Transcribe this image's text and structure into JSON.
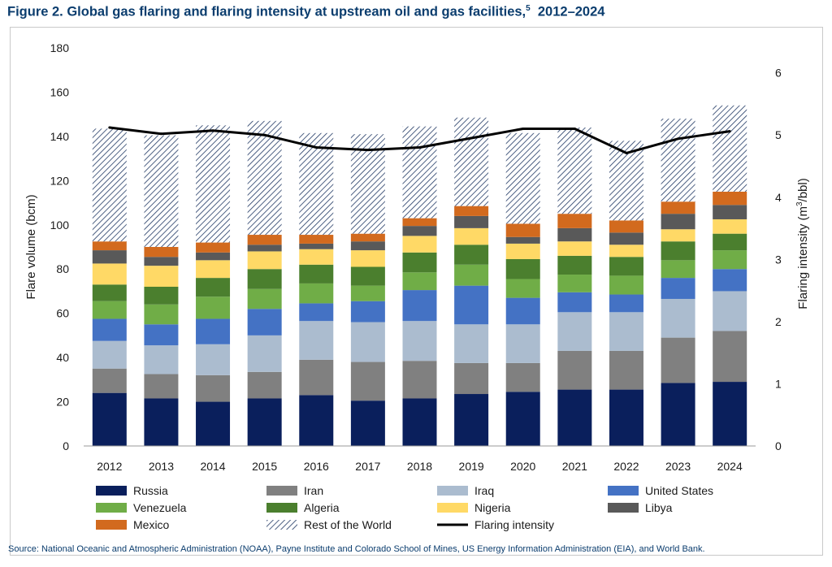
{
  "figure": {
    "title": "Figure 2. Global gas flaring and flaring intensity at upstream oil and gas facilities,",
    "title_sup": "5",
    "title_years": "2012–2024",
    "source": "Source: National Oceanic and Atmospheric Administration (NOAA), Payne Institute and Colorado School of Mines, US Energy Information Administration (EIA), and World Bank."
  },
  "chart_data": {
    "type": "bar",
    "stacked": true,
    "title": "",
    "xlabel": "",
    "ylabel": "Flare volume (bcm)",
    "y2label_prefix": "Flaring intensity (m",
    "y2label_sup": "3",
    "y2label_suffix": "/bbl)",
    "ylim": [
      0,
      180
    ],
    "yticks": [
      0,
      20,
      40,
      60,
      80,
      100,
      120,
      140,
      160,
      180
    ],
    "y2lim": [
      0,
      6.4
    ],
    "y2ticks": [
      0,
      1,
      2,
      3,
      4,
      5,
      6
    ],
    "grid": false,
    "legend_position": "bottom",
    "categories": [
      "2012",
      "2013",
      "2014",
      "2015",
      "2016",
      "2017",
      "2018",
      "2019",
      "2020",
      "2021",
      "2022",
      "2023",
      "2024"
    ],
    "series": [
      {
        "name": "Russia",
        "color": "#0a1f5c",
        "pattern": "solid",
        "values": [
          24,
          21.5,
          20,
          21.5,
          23,
          20.5,
          21.5,
          23.5,
          24.5,
          25.5,
          25.5,
          28.5,
          29
        ]
      },
      {
        "name": "Iran",
        "color": "#808080",
        "pattern": "solid",
        "values": [
          11,
          11,
          12,
          12,
          16,
          17.5,
          17,
          14,
          13,
          17.5,
          17.5,
          20.5,
          23
        ]
      },
      {
        "name": "Iraq",
        "color": "#abbccf",
        "pattern": "solid",
        "values": [
          12.5,
          13,
          14,
          16.5,
          17.5,
          18,
          18,
          17.5,
          17.5,
          17.5,
          17.5,
          17.5,
          18
        ]
      },
      {
        "name": "United States",
        "color": "#4472c4",
        "pattern": "solid",
        "values": [
          10,
          9.5,
          11.5,
          12,
          8,
          9.5,
          14,
          17.5,
          12,
          9,
          8,
          9.5,
          10
        ]
      },
      {
        "name": "Venezuela",
        "color": "#70ad47",
        "pattern": "solid",
        "values": [
          8,
          9,
          10,
          9,
          9,
          7,
          8,
          9.5,
          8.5,
          8,
          8.5,
          8,
          8.5
        ]
      },
      {
        "name": "Algeria",
        "color": "#4b7f2e",
        "pattern": "solid",
        "values": [
          7.5,
          8,
          8.5,
          9,
          8.5,
          8.5,
          9,
          9,
          9,
          8.5,
          8.5,
          8.5,
          7.5
        ]
      },
      {
        "name": "Nigeria",
        "color": "#ffd966",
        "pattern": "solid",
        "values": [
          9.5,
          9.5,
          8,
          8,
          7,
          7.5,
          7.5,
          7.5,
          7,
          6.5,
          5.5,
          5.5,
          6.5
        ]
      },
      {
        "name": "Libya",
        "color": "#595959",
        "pattern": "solid",
        "values": [
          6,
          4,
          3.5,
          3,
          2.5,
          4,
          4.5,
          5.5,
          3,
          6,
          5.5,
          7,
          6.5
        ]
      },
      {
        "name": "Mexico",
        "color": "#d26a1e",
        "pattern": "solid",
        "values": [
          4,
          4.5,
          4.5,
          4.5,
          4,
          3.5,
          3.5,
          4.5,
          6,
          6.5,
          5.5,
          5.5,
          6
        ]
      },
      {
        "name": "Rest of the World",
        "color": "#203864",
        "pattern": "hatch",
        "values": [
          51,
          50.5,
          53,
          51.5,
          46,
          45,
          41.5,
          40,
          41,
          39,
          36,
          37.5,
          39
        ]
      }
    ],
    "line_series": {
      "name": "Flaring intensity",
      "axis": "right",
      "color": "#000000",
      "values": [
        5.12,
        5.02,
        5.07,
        5.0,
        4.8,
        4.76,
        4.8,
        4.95,
        5.1,
        5.1,
        4.71,
        4.94,
        5.06
      ]
    }
  }
}
